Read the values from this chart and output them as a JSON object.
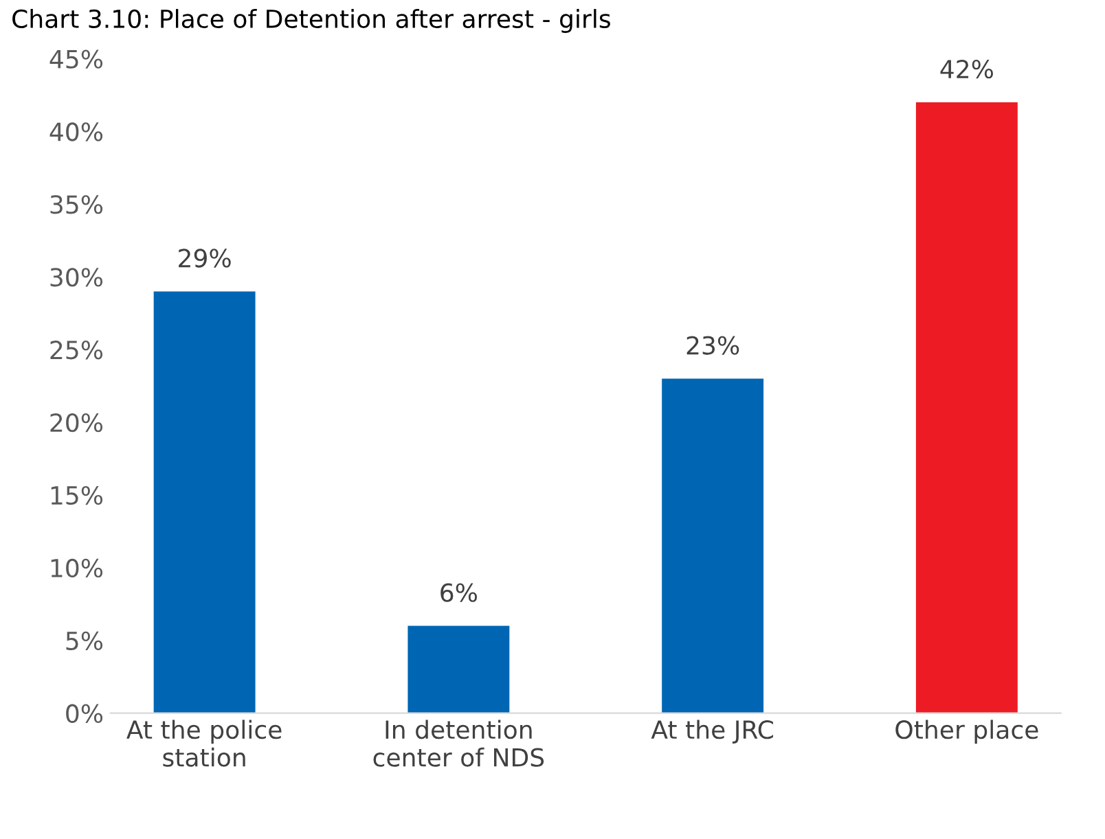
{
  "chart_data": {
    "type": "bar",
    "title": "Chart 3.10: Place of Detention after arrest - girls",
    "categories": [
      "At the police\nstation",
      "In detention\ncenter of NDS",
      "At the JRC",
      "Other place"
    ],
    "values": [
      29,
      6,
      23,
      42
    ],
    "colors": [
      "#0066b3",
      "#0066b3",
      "#0066b3",
      "#ed1c24"
    ],
    "value_labels": [
      "29%",
      "6%",
      "23%",
      "42%"
    ],
    "ylim": [
      0,
      45
    ],
    "yticks": [
      {
        "value": 0,
        "label": "0%"
      },
      {
        "value": 5,
        "label": "5%"
      },
      {
        "value": 10,
        "label": "10%"
      },
      {
        "value": 15,
        "label": "15%"
      },
      {
        "value": 20,
        "label": "20%"
      },
      {
        "value": 25,
        "label": "25%"
      },
      {
        "value": 30,
        "label": "30%"
      },
      {
        "value": 35,
        "label": "35%"
      },
      {
        "value": 40,
        "label": "40%"
      },
      {
        "value": 45,
        "label": "45%"
      }
    ],
    "grid": false,
    "legend": false
  }
}
